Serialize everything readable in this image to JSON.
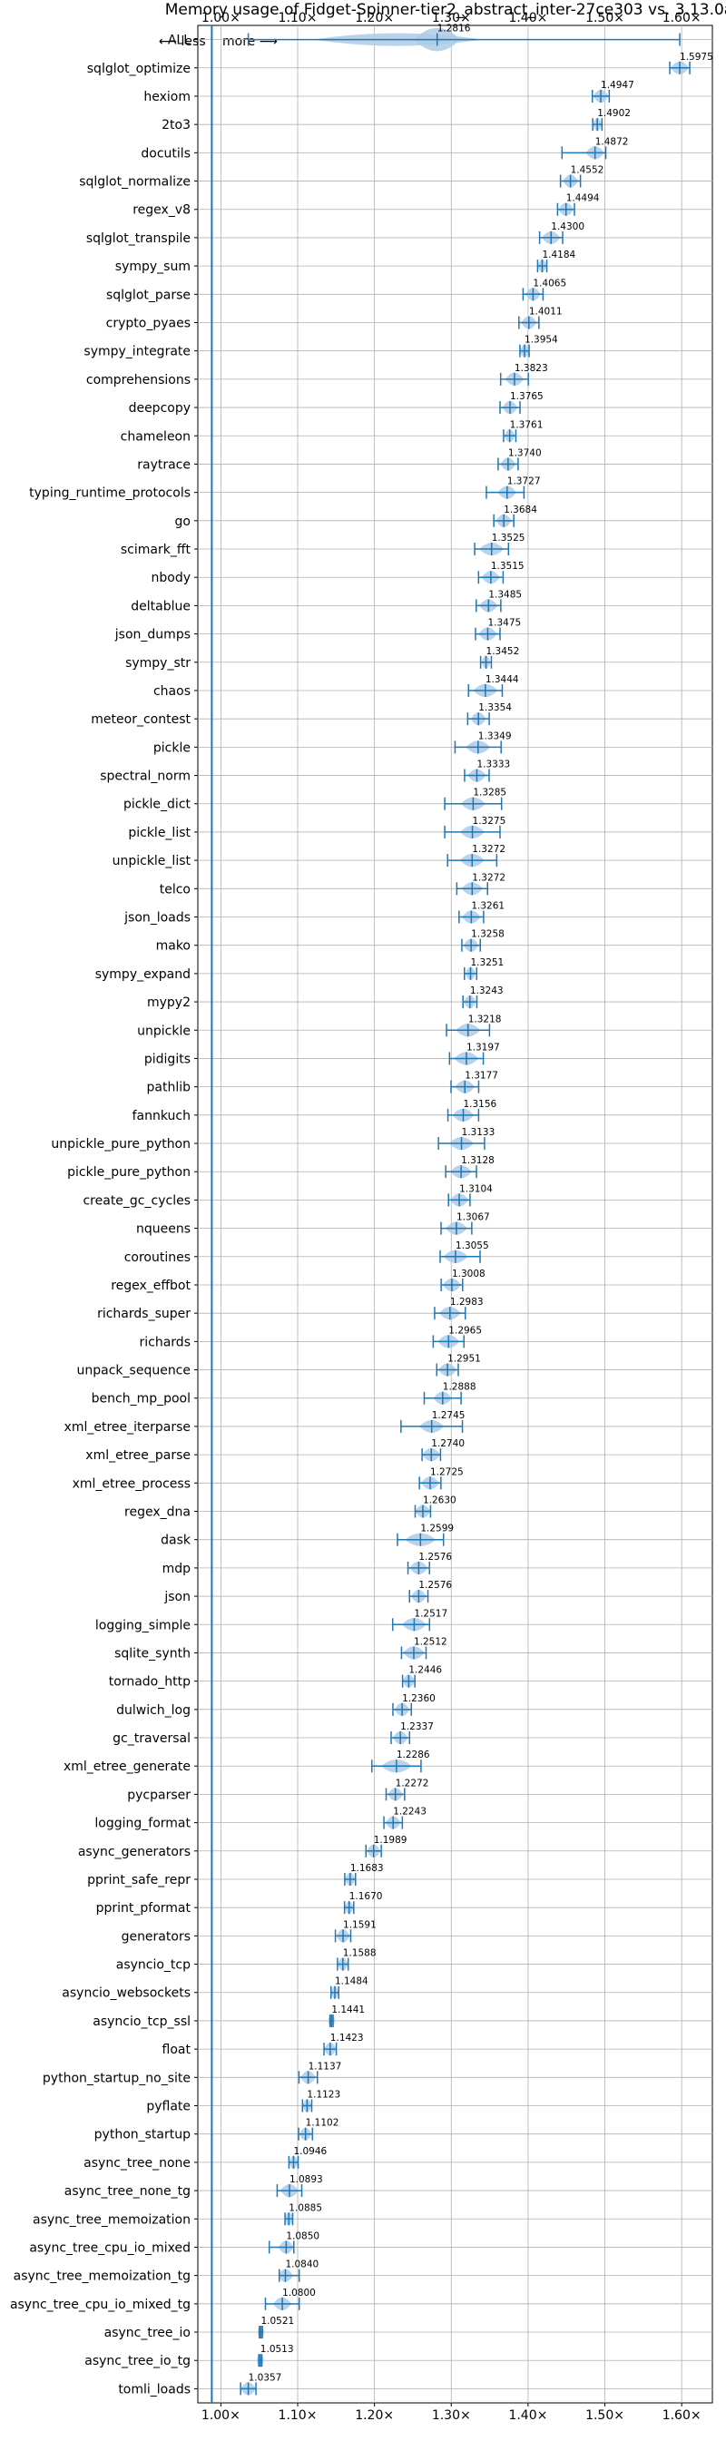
{
  "chart_data": {
    "type": "violin",
    "title": "Memory usage of Fidget-Spinner-tier2_abstract_inter-27ce303 vs. 3.13.0a",
    "direction_labels": {
      "less": "⟵ less",
      "more": "more ⟶"
    },
    "xlim": [
      0.97,
      1.64
    ],
    "xticks": [
      "1.00×",
      "1.10×",
      "1.20×",
      "1.30×",
      "1.40×",
      "1.50×",
      "1.60×"
    ],
    "xtick_values": [
      1.0,
      1.1,
      1.2,
      1.3,
      1.4,
      1.5,
      1.6
    ],
    "grid": true,
    "colors": {
      "accent": "#1f77b4",
      "violin_fill": "#aecbe6",
      "grid": "#b0b0b0",
      "baseline": "#1f77b4"
    },
    "benchmarks": [
      {
        "name": "ALL",
        "value": 1.2816,
        "label": "1.2816",
        "min": 1.0357,
        "max": 1.5975,
        "spread": 0.03
      },
      {
        "name": "sqlglot_optimize",
        "value": 1.5975,
        "label": "1.5975",
        "min": 1.5845,
        "max": 1.6105,
        "spread": 0.012
      },
      {
        "name": "hexiom",
        "value": 1.4947,
        "label": "1.4947",
        "min": 1.4837,
        "max": 1.5057,
        "spread": 0.01
      },
      {
        "name": "2to3",
        "value": 1.4902,
        "label": "1.4902",
        "min": 1.4842,
        "max": 1.4962,
        "spread": 0.006
      },
      {
        "name": "docutils",
        "value": 1.4872,
        "label": "1.4872",
        "min": 1.4442,
        "max": 1.5012,
        "spread": 0.012
      },
      {
        "name": "sqlglot_normalize",
        "value": 1.4552,
        "label": "1.4552",
        "min": 1.4422,
        "max": 1.4682,
        "spread": 0.01
      },
      {
        "name": "regex_v8",
        "value": 1.4494,
        "label": "1.4494",
        "min": 1.4384,
        "max": 1.4604,
        "spread": 0.01
      },
      {
        "name": "sqlglot_transpile",
        "value": 1.43,
        "label": "1.4300",
        "min": 1.415,
        "max": 1.445,
        "spread": 0.012
      },
      {
        "name": "sympy_sum",
        "value": 1.4184,
        "label": "1.4184",
        "min": 1.4124,
        "max": 1.4244,
        "spread": 0.006
      },
      {
        "name": "sqlglot_parse",
        "value": 1.4065,
        "label": "1.4065",
        "min": 1.3935,
        "max": 1.4195,
        "spread": 0.01
      },
      {
        "name": "crypto_pyaes",
        "value": 1.4011,
        "label": "1.4011",
        "min": 1.3881,
        "max": 1.4141,
        "spread": 0.01
      },
      {
        "name": "sympy_integrate",
        "value": 1.3954,
        "label": "1.3954",
        "min": 1.3894,
        "max": 1.4014,
        "spread": 0.006
      },
      {
        "name": "comprehensions",
        "value": 1.3823,
        "label": "1.3823",
        "min": 1.3643,
        "max": 1.4003,
        "spread": 0.012
      },
      {
        "name": "deepcopy",
        "value": 1.3765,
        "label": "1.3765",
        "min": 1.3635,
        "max": 1.3895,
        "spread": 0.01
      },
      {
        "name": "chameleon",
        "value": 1.3761,
        "label": "1.3761",
        "min": 1.3681,
        "max": 1.3841,
        "spread": 0.007
      },
      {
        "name": "raytrace",
        "value": 1.374,
        "label": "1.3740",
        "min": 1.361,
        "max": 1.387,
        "spread": 0.01
      },
      {
        "name": "typing_runtime_protocols",
        "value": 1.3727,
        "label": "1.3727",
        "min": 1.3457,
        "max": 1.3947,
        "spread": 0.012
      },
      {
        "name": "go",
        "value": 1.3684,
        "label": "1.3684",
        "min": 1.3554,
        "max": 1.3814,
        "spread": 0.01
      },
      {
        "name": "scimark_fft",
        "value": 1.3525,
        "label": "1.3525",
        "min": 1.3305,
        "max": 1.3745,
        "spread": 0.016
      },
      {
        "name": "nbody",
        "value": 1.3515,
        "label": "1.3515",
        "min": 1.3355,
        "max": 1.3675,
        "spread": 0.012
      },
      {
        "name": "deltablue",
        "value": 1.3485,
        "label": "1.3485",
        "min": 1.3325,
        "max": 1.3645,
        "spread": 0.012
      },
      {
        "name": "json_dumps",
        "value": 1.3475,
        "label": "1.3475",
        "min": 1.3315,
        "max": 1.3635,
        "spread": 0.012
      },
      {
        "name": "sympy_str",
        "value": 1.3452,
        "label": "1.3452",
        "min": 1.3382,
        "max": 1.3522,
        "spread": 0.006
      },
      {
        "name": "chaos",
        "value": 1.3444,
        "label": "1.3444",
        "min": 1.3224,
        "max": 1.3664,
        "spread": 0.016
      },
      {
        "name": "meteor_contest",
        "value": 1.3354,
        "label": "1.3354",
        "min": 1.3214,
        "max": 1.3494,
        "spread": 0.01
      },
      {
        "name": "pickle",
        "value": 1.3349,
        "label": "1.3349",
        "min": 1.3049,
        "max": 1.3649,
        "spread": 0.016
      },
      {
        "name": "spectral_norm",
        "value": 1.3333,
        "label": "1.3333",
        "min": 1.3173,
        "max": 1.3493,
        "spread": 0.012
      },
      {
        "name": "pickle_dict",
        "value": 1.3285,
        "label": "1.3285",
        "min": 1.2915,
        "max": 1.3655,
        "spread": 0.016
      },
      {
        "name": "pickle_list",
        "value": 1.3275,
        "label": "1.3275",
        "min": 1.2915,
        "max": 1.3635,
        "spread": 0.016
      },
      {
        "name": "unpickle_list",
        "value": 1.3272,
        "label": "1.3272",
        "min": 1.2952,
        "max": 1.3592,
        "spread": 0.016
      },
      {
        "name": "telco",
        "value": 1.3272,
        "label": "1.3272",
        "min": 1.3072,
        "max": 1.3472,
        "spread": 0.014
      },
      {
        "name": "json_loads",
        "value": 1.3261,
        "label": "1.3261",
        "min": 1.3101,
        "max": 1.3421,
        "spread": 0.012
      },
      {
        "name": "mako",
        "value": 1.3258,
        "label": "1.3258",
        "min": 1.3138,
        "max": 1.3378,
        "spread": 0.01
      },
      {
        "name": "sympy_expand",
        "value": 1.3251,
        "label": "1.3251",
        "min": 1.3171,
        "max": 1.3331,
        "spread": 0.007
      },
      {
        "name": "mypy2",
        "value": 1.3243,
        "label": "1.3243",
        "min": 1.3153,
        "max": 1.3333,
        "spread": 0.008
      },
      {
        "name": "unpickle",
        "value": 1.3218,
        "label": "1.3218",
        "min": 1.2938,
        "max": 1.3498,
        "spread": 0.016
      },
      {
        "name": "pidigits",
        "value": 1.3197,
        "label": "1.3197",
        "min": 1.2977,
        "max": 1.3417,
        "spread": 0.016
      },
      {
        "name": "pathlib",
        "value": 1.3177,
        "label": "1.3177",
        "min": 1.2997,
        "max": 1.3357,
        "spread": 0.013
      },
      {
        "name": "fannkuch",
        "value": 1.3156,
        "label": "1.3156",
        "min": 1.2956,
        "max": 1.3356,
        "spread": 0.014
      },
      {
        "name": "unpickle_pure_python",
        "value": 1.3133,
        "label": "1.3133",
        "min": 1.2833,
        "max": 1.3433,
        "spread": 0.016
      },
      {
        "name": "pickle_pure_python",
        "value": 1.3128,
        "label": "1.3128",
        "min": 1.2928,
        "max": 1.3328,
        "spread": 0.014
      },
      {
        "name": "create_gc_cycles",
        "value": 1.3104,
        "label": "1.3104",
        "min": 1.2964,
        "max": 1.3244,
        "spread": 0.012
      },
      {
        "name": "nqueens",
        "value": 1.3067,
        "label": "1.3067",
        "min": 1.2867,
        "max": 1.3267,
        "spread": 0.014
      },
      {
        "name": "coroutines",
        "value": 1.3055,
        "label": "1.3055",
        "min": 1.2855,
        "max": 1.3375,
        "spread": 0.016
      },
      {
        "name": "regex_effbot",
        "value": 1.3008,
        "label": "1.3008",
        "min": 1.2868,
        "max": 1.3148,
        "spread": 0.012
      },
      {
        "name": "richards_super",
        "value": 1.2983,
        "label": "1.2983",
        "min": 1.2783,
        "max": 1.3183,
        "spread": 0.014
      },
      {
        "name": "richards",
        "value": 1.2965,
        "label": "1.2965",
        "min": 1.2765,
        "max": 1.3165,
        "spread": 0.014
      },
      {
        "name": "unpack_sequence",
        "value": 1.2951,
        "label": "1.2951",
        "min": 1.2811,
        "max": 1.3091,
        "spread": 0.012
      },
      {
        "name": "bench_mp_pool",
        "value": 1.2888,
        "label": "1.2888",
        "min": 1.2648,
        "max": 1.3128,
        "spread": 0.012
      },
      {
        "name": "xml_etree_iterparse",
        "value": 1.2745,
        "label": "1.2745",
        "min": 1.2345,
        "max": 1.3145,
        "spread": 0.016
      },
      {
        "name": "xml_etree_parse",
        "value": 1.274,
        "label": "1.2740",
        "min": 1.262,
        "max": 1.286,
        "spread": 0.012
      },
      {
        "name": "xml_etree_process",
        "value": 1.2725,
        "label": "1.2725",
        "min": 1.2585,
        "max": 1.2865,
        "spread": 0.012
      },
      {
        "name": "regex_dna",
        "value": 1.263,
        "label": "1.2630",
        "min": 1.253,
        "max": 1.273,
        "spread": 0.01
      },
      {
        "name": "dask",
        "value": 1.2599,
        "label": "1.2599",
        "min": 1.2299,
        "max": 1.2899,
        "spread": 0.02
      },
      {
        "name": "mdp",
        "value": 1.2576,
        "label": "1.2576",
        "min": 1.2436,
        "max": 1.2716,
        "spread": 0.012
      },
      {
        "name": "json",
        "value": 1.2576,
        "label": "1.2576",
        "min": 1.2456,
        "max": 1.2696,
        "spread": 0.01
      },
      {
        "name": "logging_simple",
        "value": 1.2517,
        "label": "1.2517",
        "min": 1.2237,
        "max": 1.2717,
        "spread": 0.016
      },
      {
        "name": "sqlite_synth",
        "value": 1.2512,
        "label": "1.2512",
        "min": 1.2352,
        "max": 1.2672,
        "spread": 0.014
      },
      {
        "name": "tornado_http",
        "value": 1.2446,
        "label": "1.2446",
        "min": 1.2366,
        "max": 1.2526,
        "spread": 0.008
      },
      {
        "name": "dulwich_log",
        "value": 1.236,
        "label": "1.2360",
        "min": 1.224,
        "max": 1.248,
        "spread": 0.01
      },
      {
        "name": "gc_traversal",
        "value": 1.2337,
        "label": "1.2337",
        "min": 1.2217,
        "max": 1.2457,
        "spread": 0.01
      },
      {
        "name": "xml_etree_generate",
        "value": 1.2286,
        "label": "1.2286",
        "min": 1.1966,
        "max": 1.2606,
        "spread": 0.02
      },
      {
        "name": "pycparser",
        "value": 1.2272,
        "label": "1.2272",
        "min": 1.2152,
        "max": 1.2392,
        "spread": 0.01
      },
      {
        "name": "logging_format",
        "value": 1.2243,
        "label": "1.2243",
        "min": 1.2123,
        "max": 1.2363,
        "spread": 0.01
      },
      {
        "name": "async_generators",
        "value": 1.1989,
        "label": "1.1989",
        "min": 1.1889,
        "max": 1.2089,
        "spread": 0.009
      },
      {
        "name": "pprint_safe_repr",
        "value": 1.1683,
        "label": "1.1683",
        "min": 1.1613,
        "max": 1.1753,
        "spread": 0.007
      },
      {
        "name": "pprint_pformat",
        "value": 1.167,
        "label": "1.1670",
        "min": 1.161,
        "max": 1.173,
        "spread": 0.006
      },
      {
        "name": "generators",
        "value": 1.1591,
        "label": "1.1591",
        "min": 1.1491,
        "max": 1.1691,
        "spread": 0.009
      },
      {
        "name": "asyncio_tcp",
        "value": 1.1588,
        "label": "1.1588",
        "min": 1.1518,
        "max": 1.1658,
        "spread": 0.007
      },
      {
        "name": "asyncio_websockets",
        "value": 1.1484,
        "label": "1.1484",
        "min": 1.1434,
        "max": 1.1534,
        "spread": 0.005
      },
      {
        "name": "asyncio_tcp_ssl",
        "value": 1.1441,
        "label": "1.1441",
        "min": 1.1421,
        "max": 1.1461,
        "spread": 0.003
      },
      {
        "name": "float",
        "value": 1.1423,
        "label": "1.1423",
        "min": 1.1343,
        "max": 1.1503,
        "spread": 0.008
      },
      {
        "name": "python_startup_no_site",
        "value": 1.1137,
        "label": "1.1137",
        "min": 1.1017,
        "max": 1.1257,
        "spread": 0.01
      },
      {
        "name": "pyflate",
        "value": 1.1123,
        "label": "1.1123",
        "min": 1.1063,
        "max": 1.1183,
        "spread": 0.006
      },
      {
        "name": "python_startup",
        "value": 1.1102,
        "label": "1.1102",
        "min": 1.1012,
        "max": 1.1192,
        "spread": 0.008
      },
      {
        "name": "async_tree_none",
        "value": 1.0946,
        "label": "1.0946",
        "min": 1.0886,
        "max": 1.1006,
        "spread": 0.006
      },
      {
        "name": "async_tree_none_tg",
        "value": 1.0893,
        "label": "1.0893",
        "min": 1.0733,
        "max": 1.1053,
        "spread": 0.012
      },
      {
        "name": "async_tree_memoization",
        "value": 1.0885,
        "label": "1.0885",
        "min": 1.0835,
        "max": 1.0935,
        "spread": 0.006
      },
      {
        "name": "async_tree_cpu_io_mixed",
        "value": 1.085,
        "label": "1.0850",
        "min": 1.063,
        "max": 1.095,
        "spread": 0.01
      },
      {
        "name": "async_tree_memoization_tg",
        "value": 1.084,
        "label": "1.0840",
        "min": 1.076,
        "max": 1.102,
        "spread": 0.01
      },
      {
        "name": "async_tree_cpu_io_mixed_tg",
        "value": 1.08,
        "label": "1.0800",
        "min": 1.058,
        "max": 1.102,
        "spread": 0.012
      },
      {
        "name": "async_tree_io",
        "value": 1.0521,
        "label": "1.0521",
        "min": 1.0501,
        "max": 1.0541,
        "spread": 0.003
      },
      {
        "name": "async_tree_io_tg",
        "value": 1.0513,
        "label": "1.0513",
        "min": 1.0493,
        "max": 1.0533,
        "spread": 0.003
      },
      {
        "name": "tomli_loads",
        "value": 1.0357,
        "label": "1.0357",
        "min": 1.0257,
        "max": 1.0457,
        "spread": 0.01
      }
    ]
  }
}
